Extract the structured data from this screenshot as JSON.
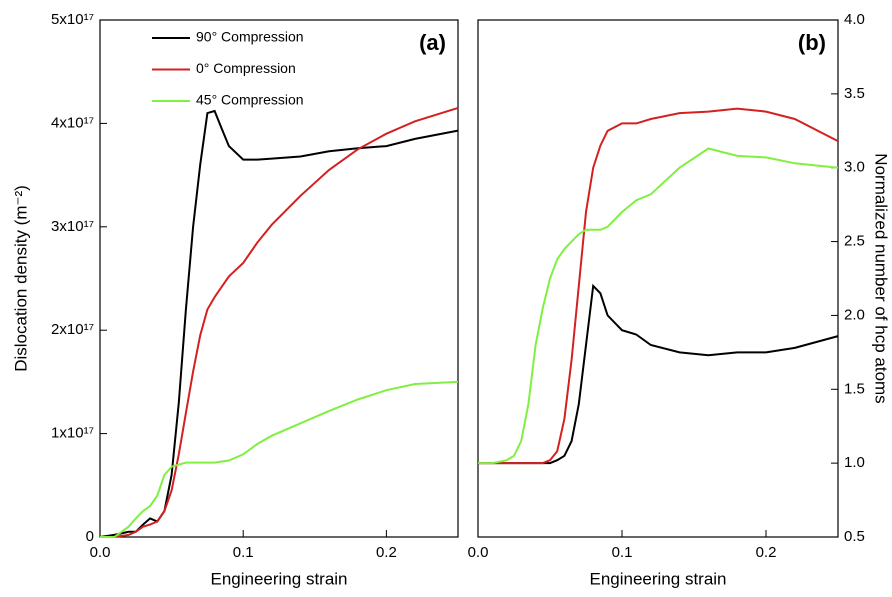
{
  "chart_data": [
    {
      "type": "line",
      "panel_label": "(a)",
      "xlabel": "Engineering strain",
      "ylabel": "Dislocation density (m⁻²)",
      "x": [
        0,
        0.01,
        0.02,
        0.025,
        0.03,
        0.035,
        0.04,
        0.045,
        0.05,
        0.055,
        0.06,
        0.065,
        0.07,
        0.075,
        0.08,
        0.085,
        0.09,
        0.1,
        0.11,
        0.12,
        0.14,
        0.16,
        0.18,
        0.2,
        0.22,
        0.25
      ],
      "xlim": [
        0,
        0.25
      ],
      "xticks": [
        {
          "value": 0,
          "label": "0.0"
        },
        0.1,
        0.2
      ],
      "ylim": [
        0,
        5e+17
      ],
      "yticks": [
        0,
        {
          "value": 1e+17,
          "label": "1x10¹⁷"
        },
        {
          "value": 2e+17,
          "label": "2x10¹⁷"
        },
        {
          "value": 3e+17,
          "label": "3x10¹⁷"
        },
        {
          "value": 4e+17,
          "label": "4x10¹⁷"
        },
        {
          "value": 5e+17,
          "label": "5x10¹⁷"
        }
      ],
      "y_axis_side": "left",
      "legend": "upper left",
      "series": [
        {
          "name": "90° Compression",
          "color": "#000000",
          "values": [
            0,
            2000000000000000.0,
            5000000000000000.0,
            5000000000000000.0,
            1.2e+16,
            1.8e+16,
            1.5e+16,
            2.5e+16,
            6e+16,
            1.3e+17,
            2.2e+17,
            3e+17,
            3.6e+17,
            4.1e+17,
            4.12e+17,
            3.95e+17,
            3.78e+17,
            3.65e+17,
            3.65e+17,
            3.66e+17,
            3.68e+17,
            3.73e+17,
            3.76e+17,
            3.78e+17,
            3.85e+17,
            3.93e+17
          ]
        },
        {
          "name": "0° Compression",
          "color": "#d42020",
          "values": [
            0,
            0,
            2000000000000000.0,
            5000000000000000.0,
            1e+16,
            1.2e+16,
            1.5e+16,
            2.5e+16,
            4.5e+16,
            8e+16,
            1.2e+17,
            1.6e+17,
            1.95e+17,
            2.2e+17,
            2.32e+17,
            2.42e+17,
            2.52e+17,
            2.65e+17,
            2.85e+17,
            3.02e+17,
            3.3e+17,
            3.55e+17,
            3.75e+17,
            3.9e+17,
            4.02e+17,
            4.15e+17
          ]
        },
        {
          "name": "45° Compression",
          "color": "#80f040",
          "values": [
            0,
            0,
            1e+16,
            1.8e+16,
            2.5e+16,
            3e+16,
            4e+16,
            6e+16,
            6.8e+16,
            7e+16,
            7.2e+16,
            7.2e+16,
            7.2e+16,
            7.2e+16,
            7.2e+16,
            7.3e+16,
            7.4e+16,
            8e+16,
            9e+16,
            9.8e+16,
            1.1e+17,
            1.22e+17,
            1.33e+17,
            1.42e+17,
            1.48e+17,
            1.5e+17
          ]
        }
      ]
    },
    {
      "type": "line",
      "panel_label": "(b)",
      "xlabel": "Engineering strain",
      "ylabel": "Normalized number of hcp atoms",
      "x": [
        0,
        0.01,
        0.02,
        0.025,
        0.03,
        0.035,
        0.04,
        0.045,
        0.05,
        0.055,
        0.06,
        0.065,
        0.07,
        0.075,
        0.08,
        0.085,
        0.09,
        0.1,
        0.11,
        0.12,
        0.14,
        0.16,
        0.18,
        0.2,
        0.22,
        0.25
      ],
      "xlim": [
        0,
        0.25
      ],
      "xticks": [
        {
          "value": 0,
          "label": "0.0"
        },
        0.1,
        0.2
      ],
      "ylim": [
        0.5,
        4.0
      ],
      "yticks": [
        0.5,
        {
          "value": 1,
          "label": "1.0"
        },
        1.5,
        {
          "value": 2,
          "label": "2.0"
        },
        2.5,
        {
          "value": 3,
          "label": "3.0"
        },
        3.5,
        {
          "value": 4,
          "label": "4.0"
        }
      ],
      "y_axis_side": "right",
      "series": [
        {
          "color": "#000000",
          "values": [
            1,
            1,
            1,
            1,
            1,
            1,
            1,
            1,
            1,
            1.02,
            1.05,
            1.15,
            1.4,
            1.8,
            2.2,
            2.15,
            2.0,
            1.9,
            1.87,
            1.8,
            1.75,
            1.73,
            1.75,
            1.75,
            1.78,
            1.86
          ]
        },
        {
          "color": "#d42020",
          "values": [
            1,
            1,
            1,
            1,
            1,
            1,
            1,
            1,
            1.02,
            1.08,
            1.3,
            1.7,
            2.2,
            2.7,
            3.0,
            3.15,
            3.25,
            3.3,
            3.3,
            3.33,
            3.37,
            3.38,
            3.4,
            3.38,
            3.33,
            3.18
          ]
        },
        {
          "color": "#80f040",
          "values": [
            1,
            1,
            1.02,
            1.05,
            1.15,
            1.4,
            1.8,
            2.05,
            2.25,
            2.38,
            2.45,
            2.5,
            2.55,
            2.58,
            2.58,
            2.58,
            2.6,
            2.7,
            2.78,
            2.82,
            3.0,
            3.13,
            3.08,
            3.07,
            3.03,
            3.0
          ]
        }
      ]
    }
  ]
}
